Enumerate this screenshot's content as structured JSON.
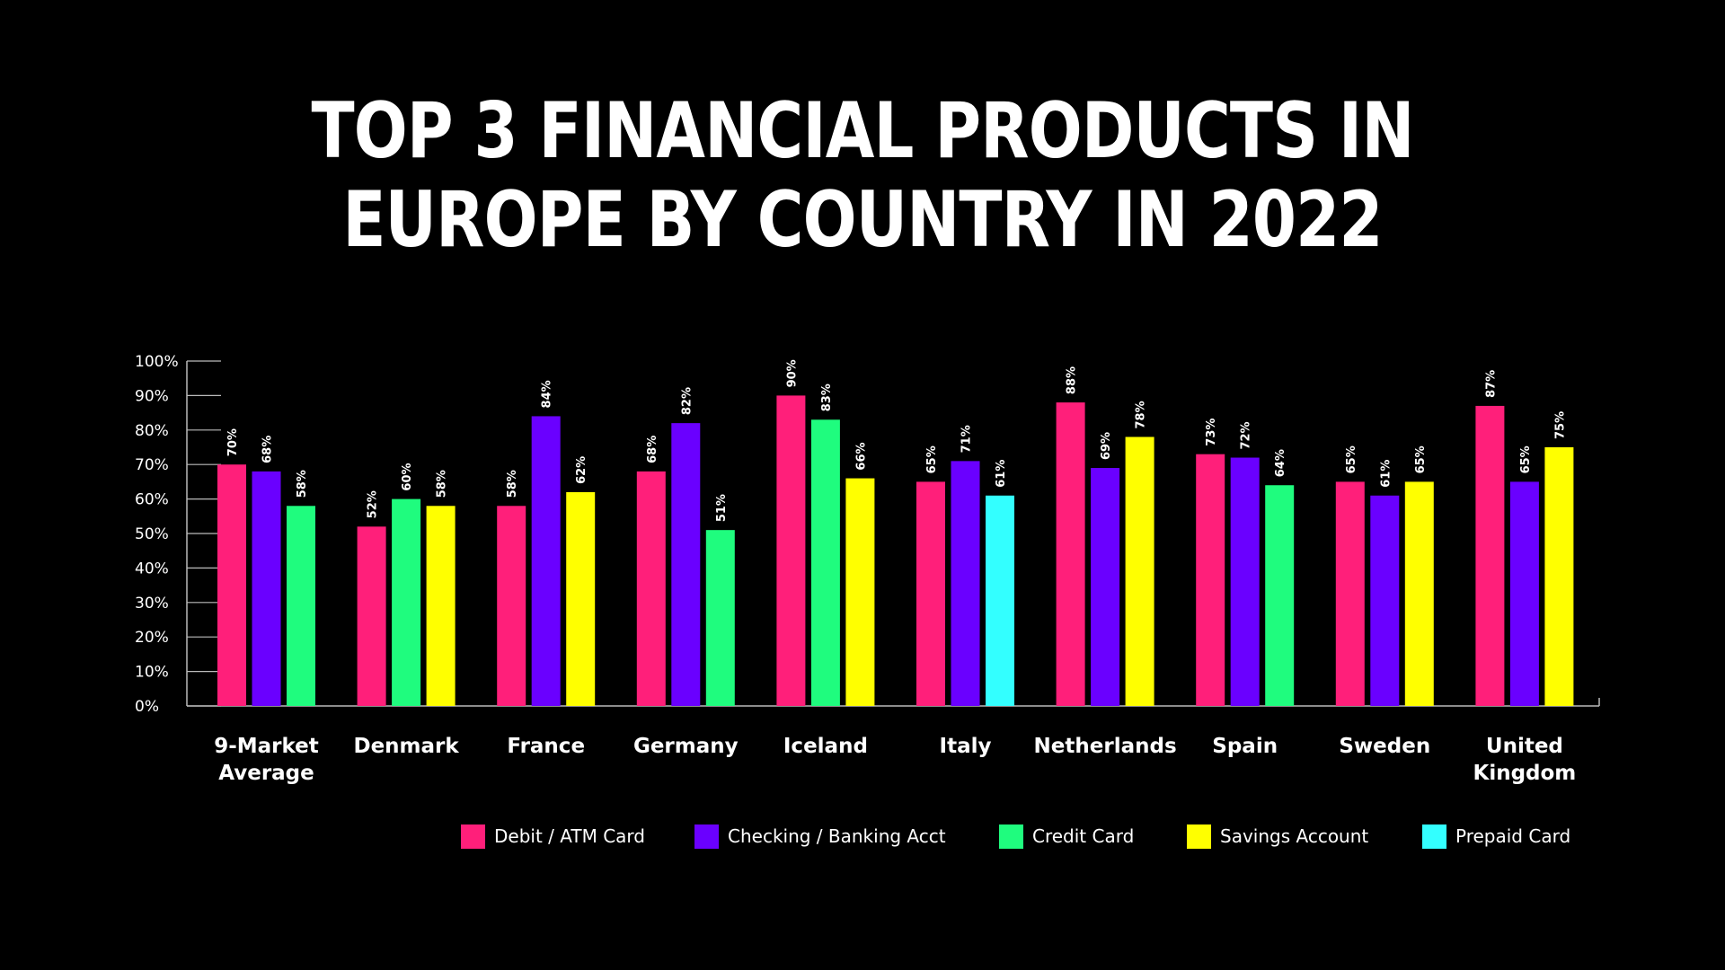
{
  "title_lines": [
    "TOP 3 FINANCIAL PRODUCTS IN",
    "EUROPE BY COUNTRY IN 2022"
  ],
  "chart_data": {
    "type": "bar",
    "title": "TOP 3 FINANCIAL PRODUCTS IN EUROPE BY COUNTRY IN 2022",
    "ylim": [
      0,
      100
    ],
    "y_ticks": [
      "0%",
      "10%",
      "20%",
      "30%",
      "40%",
      "50%",
      "60%",
      "70%",
      "80%",
      "90%",
      "100%"
    ],
    "products": [
      {
        "name": "Debit / ATM Card",
        "color": "#ff1f7a"
      },
      {
        "name": "Checking / Banking Acct",
        "color": "#6a00ff"
      },
      {
        "name": "Credit Card",
        "color": "#1ffc7e"
      },
      {
        "name": "Savings Account",
        "color": "#ffff00"
      },
      {
        "name": "Prepaid Card",
        "color": "#33ffff"
      }
    ],
    "groups": [
      {
        "category": [
          "9-Market",
          "Average"
        ],
        "bars": [
          {
            "product": "Debit / ATM Card",
            "value": 70,
            "label": "70%"
          },
          {
            "product": "Checking / Banking Acct",
            "value": 68,
            "label": "68%"
          },
          {
            "product": "Credit Card",
            "value": 58,
            "label": "58%"
          }
        ]
      },
      {
        "category": [
          "Denmark"
        ],
        "bars": [
          {
            "product": "Debit / ATM Card",
            "value": 52,
            "label": "52%"
          },
          {
            "product": "Credit Card",
            "value": 60,
            "label": "60%"
          },
          {
            "product": "Savings Account",
            "value": 58,
            "label": "58%"
          }
        ]
      },
      {
        "category": [
          "France"
        ],
        "bars": [
          {
            "product": "Debit / ATM Card",
            "value": 58,
            "label": "58%"
          },
          {
            "product": "Checking / Banking Acct",
            "value": 84,
            "label": "84%"
          },
          {
            "product": "Savings Account",
            "value": 62,
            "label": "62%"
          }
        ]
      },
      {
        "category": [
          "Germany"
        ],
        "bars": [
          {
            "product": "Debit / ATM Card",
            "value": 68,
            "label": "68%"
          },
          {
            "product": "Checking / Banking Acct",
            "value": 82,
            "label": "82%"
          },
          {
            "product": "Credit Card",
            "value": 51,
            "label": "51%"
          }
        ]
      },
      {
        "category": [
          "Iceland"
        ],
        "bars": [
          {
            "product": "Debit / ATM Card",
            "value": 90,
            "label": "90%"
          },
          {
            "product": "Credit Card",
            "value": 83,
            "label": "83%"
          },
          {
            "product": "Savings Account",
            "value": 66,
            "label": "66%"
          }
        ]
      },
      {
        "category": [
          "Italy"
        ],
        "bars": [
          {
            "product": "Debit / ATM Card",
            "value": 65,
            "label": "65%"
          },
          {
            "product": "Checking / Banking Acct",
            "value": 71,
            "label": "71%"
          },
          {
            "product": "Prepaid Card",
            "value": 61,
            "label": "61%"
          }
        ]
      },
      {
        "category": [
          "Netherlands"
        ],
        "bars": [
          {
            "product": "Debit / ATM Card",
            "value": 88,
            "label": "88%"
          },
          {
            "product": "Checking / Banking Acct",
            "value": 69,
            "label": "69%"
          },
          {
            "product": "Savings Account",
            "value": 78,
            "label": "78%"
          }
        ]
      },
      {
        "category": [
          "Spain"
        ],
        "bars": [
          {
            "product": "Debit / ATM Card",
            "value": 73,
            "label": "73%"
          },
          {
            "product": "Checking / Banking Acct",
            "value": 72,
            "label": "72%"
          },
          {
            "product": "Credit Card",
            "value": 64,
            "label": "64%"
          }
        ]
      },
      {
        "category": [
          "Sweden"
        ],
        "bars": [
          {
            "product": "Debit / ATM Card",
            "value": 65,
            "label": "65%"
          },
          {
            "product": "Checking / Banking Acct",
            "value": 61,
            "label": "61%"
          },
          {
            "product": "Savings Account",
            "value": 65,
            "label": "65%"
          }
        ]
      },
      {
        "category": [
          "United",
          "Kingdom"
        ],
        "bars": [
          {
            "product": "Debit / ATM Card",
            "value": 87,
            "label": "87%"
          },
          {
            "product": "Checking / Banking Acct",
            "value": 65,
            "label": "65%"
          },
          {
            "product": "Savings Account",
            "value": 75,
            "label": "75%"
          }
        ]
      }
    ],
    "legend_position": "bottom",
    "grid": false
  }
}
